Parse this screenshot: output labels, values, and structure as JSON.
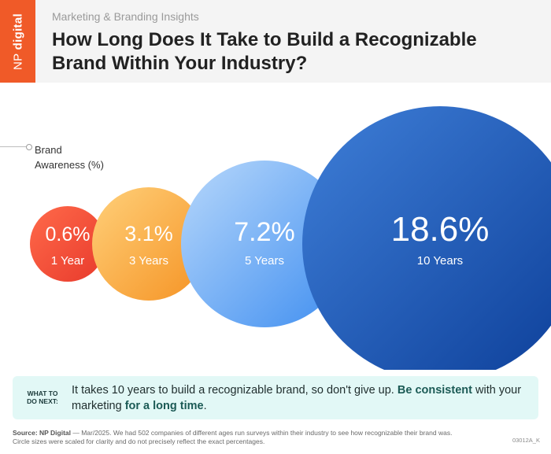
{
  "brand": {
    "name_a": "NP",
    "name_b": "digital",
    "color": "#f05a28"
  },
  "header": {
    "kicker": "Marketing & Branding Insights",
    "title_line1": "How Long Does It Take to Build a Recognizable",
    "title_line2": "Brand Within Your Industry?"
  },
  "legend": {
    "line1": "Brand",
    "line2": "Awareness (%)"
  },
  "chart_data": {
    "type": "bubble",
    "value_label": "Brand Awareness (%)",
    "categories": [
      "1 Year",
      "3 Years",
      "5 Years",
      "10 Years"
    ],
    "values": [
      0.6,
      3.1,
      7.2,
      18.6
    ],
    "value_labels": [
      "0.6%",
      "3.1%",
      "7.2%",
      "18.6%"
    ],
    "colors": [
      [
        "#ff6a4a",
        "#e83a2c"
      ],
      [
        "#ffd07a",
        "#f59324"
      ],
      [
        "#b8d8fb",
        "#3f8ef0"
      ],
      [
        "#3f7fd8",
        "#0c3e98"
      ]
    ]
  },
  "callout": {
    "tag_line1": "WHAT TO",
    "tag_line2": "DO NEXT:",
    "text_a": "It takes 10 years to build a recognizable brand, so don't give up.",
    "text_b": "Be consistent",
    "text_c": "with your marketing",
    "text_d": "for a long time",
    "text_e": "."
  },
  "footer": {
    "source_label": "Source: NP Digital",
    "source_rest": " — Mar/2025. We had 502 companies of different ages run surveys within their industry to see how recognizable their brand was.",
    "line2": "Circle sizes were scaled for clarity and do not precisely reflect the exact percentages.",
    "code": "03012A_K"
  }
}
